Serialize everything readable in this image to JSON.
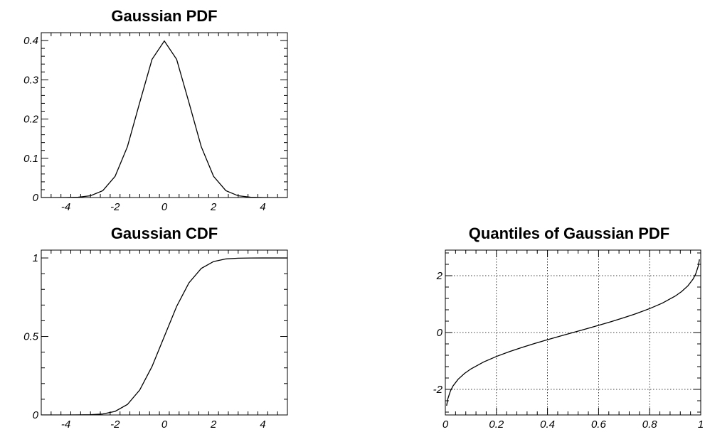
{
  "chart_data": [
    {
      "id": "pdf",
      "type": "line",
      "title": "Gaussian PDF",
      "xlabel": "",
      "ylabel": "",
      "xlim": [
        -5,
        5
      ],
      "ylim": [
        0,
        0.42
      ],
      "grid": false,
      "xticks": [
        -4,
        -2,
        0,
        2,
        4
      ],
      "xtick_labels": [
        "-4",
        "-2",
        "0",
        "2",
        "4"
      ],
      "yticks": [
        0,
        0.1,
        0.2,
        0.3,
        0.4
      ],
      "ytick_labels": [
        "0",
        "0.1",
        "0.2",
        "0.3",
        "0.4"
      ],
      "series": [
        {
          "x": [
            -5,
            -4.5,
            -4,
            -3.5,
            -3,
            -2.5,
            -2,
            -1.5,
            -1,
            -0.5,
            0,
            0.5,
            1,
            1.5,
            2,
            2.5,
            3,
            3.5,
            4,
            4.5,
            5
          ],
          "y": [
            1.5e-06,
            1.6e-05,
            0.000134,
            0.000873,
            0.004432,
            0.017528,
            0.053991,
            0.129518,
            0.241971,
            0.352065,
            0.398942,
            0.352065,
            0.241971,
            0.129518,
            0.053991,
            0.017528,
            0.004432,
            0.000873,
            0.000134,
            1.6e-05,
            1.5e-06
          ]
        }
      ]
    },
    {
      "id": "cdf",
      "type": "line",
      "title": "Gaussian CDF",
      "xlabel": "",
      "ylabel": "",
      "xlim": [
        -5,
        5
      ],
      "ylim": [
        0,
        1.05
      ],
      "grid": false,
      "xticks": [
        -4,
        -2,
        0,
        2,
        4
      ],
      "xtick_labels": [
        "-4",
        "-2",
        "0",
        "2",
        "4"
      ],
      "yticks": [
        0,
        0.5,
        1
      ],
      "ytick_labels": [
        "0",
        "0.5",
        "1"
      ],
      "series": [
        {
          "x": [
            -5,
            -4.5,
            -4,
            -3.5,
            -3,
            -2.5,
            -2,
            -1.5,
            -1,
            -0.5,
            0,
            0.5,
            1,
            1.5,
            2,
            2.5,
            3,
            3.5,
            4,
            4.5,
            5
          ],
          "y": [
            3e-07,
            3.4e-06,
            3.2e-05,
            0.000233,
            0.00135,
            0.00621,
            0.02275,
            0.06681,
            0.15866,
            0.30854,
            0.5,
            0.69146,
            0.84134,
            0.93319,
            0.97725,
            0.99379,
            0.99865,
            0.999767,
            0.999968,
            0.9999966,
            0.9999997
          ]
        }
      ]
    },
    {
      "id": "quantile",
      "type": "line",
      "title": "Quantiles of Gaussian PDF",
      "xlabel": "",
      "ylabel": "",
      "xlim": [
        0,
        1
      ],
      "ylim": [
        -2.9,
        2.9
      ],
      "grid": true,
      "xticks": [
        0,
        0.2,
        0.4,
        0.6,
        0.8,
        1
      ],
      "xtick_labels": [
        "0",
        "0.2",
        "0.4",
        "0.6",
        "0.8",
        "1"
      ],
      "yticks": [
        -2,
        0,
        2
      ],
      "ytick_labels": [
        "-2",
        "0",
        "2"
      ],
      "series": [
        {
          "x": [
            0.005,
            0.01,
            0.02,
            0.03,
            0.05,
            0.075,
            0.1,
            0.15,
            0.2,
            0.25,
            0.3,
            0.35,
            0.4,
            0.45,
            0.5,
            0.55,
            0.6,
            0.65,
            0.7,
            0.75,
            0.8,
            0.85,
            0.9,
            0.925,
            0.95,
            0.97,
            0.98,
            0.99,
            0.995
          ],
          "y": [
            -2.576,
            -2.326,
            -2.054,
            -1.881,
            -1.645,
            -1.44,
            -1.282,
            -1.036,
            -0.842,
            -0.674,
            -0.524,
            -0.385,
            -0.253,
            -0.126,
            0,
            0.126,
            0.253,
            0.385,
            0.524,
            0.674,
            0.842,
            1.036,
            1.282,
            1.44,
            1.645,
            1.881,
            2.054,
            2.326,
            2.576
          ]
        }
      ]
    }
  ]
}
